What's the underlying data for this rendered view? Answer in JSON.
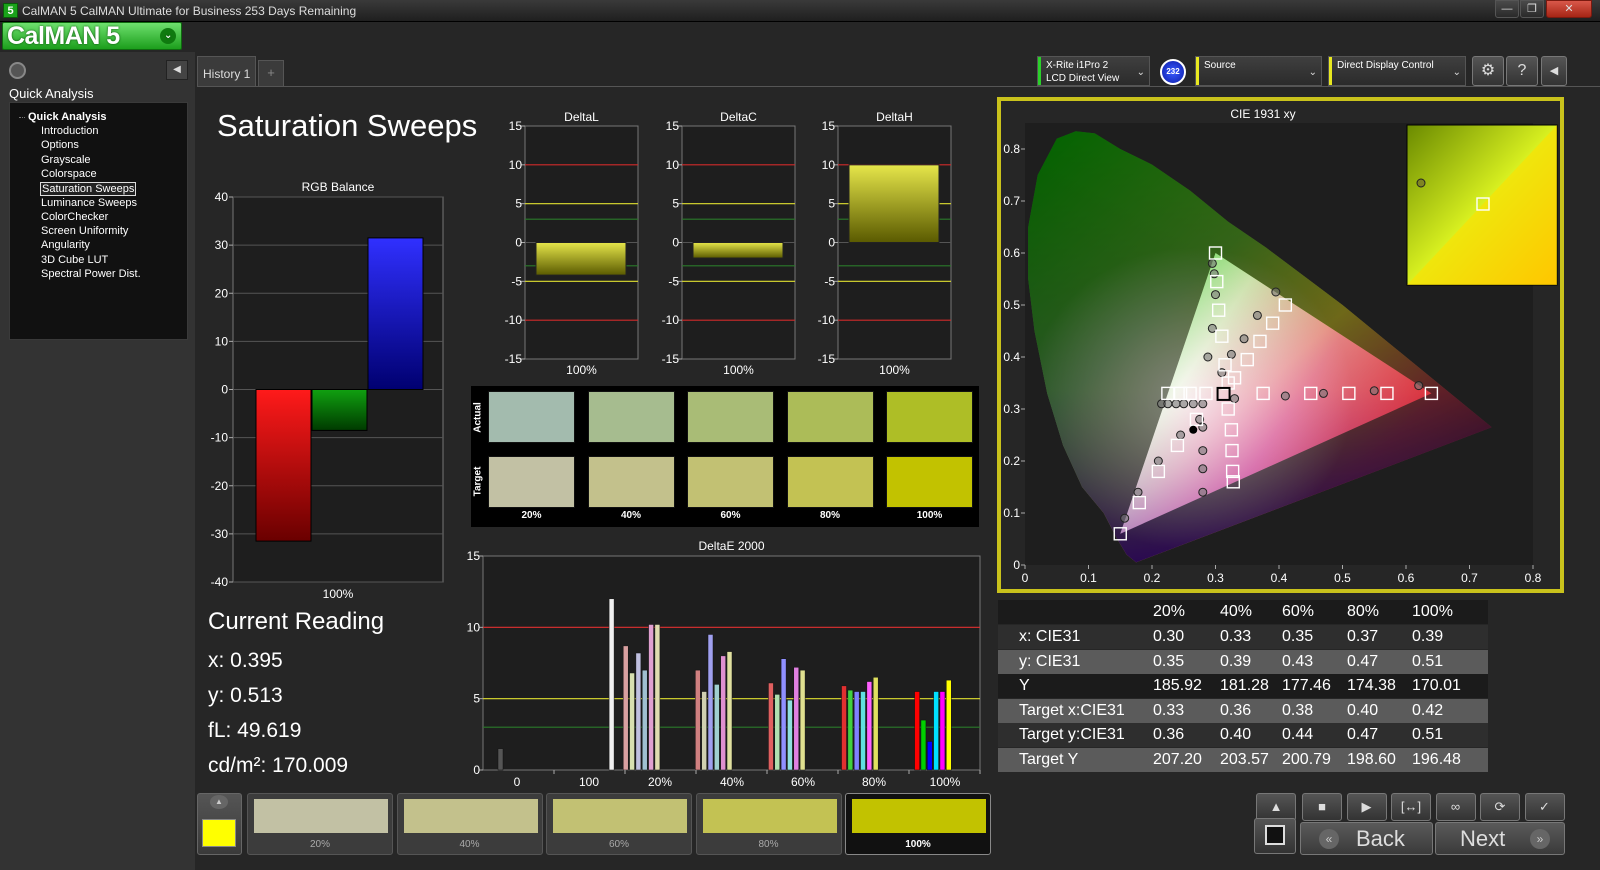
{
  "window": {
    "title": "CalMAN 5 CalMAN Ultimate for Business 253 Days Remaining",
    "icon_label": "5",
    "min": "—",
    "max": "❐",
    "close": "✕"
  },
  "logo": {
    "text": "CalMAN 5",
    "caret": "⌄"
  },
  "left_panel": {
    "heading": "Quick Analysis",
    "collapse": "◀",
    "root": "Quick Analysis",
    "items": [
      "Introduction",
      "Options",
      "Grayscale",
      "Colorspace",
      "Saturation Sweeps",
      "Luminance Sweeps",
      "ColorChecker",
      "Screen Uniformity",
      "Angularity",
      "3D Cube LUT",
      "Spectral Power Dist."
    ],
    "selected_index": 4
  },
  "tabs": {
    "history": "History 1",
    "add": "+"
  },
  "devices": {
    "meter_line1": "X-Rite i1Pro 2",
    "meter_line2": "LCD Direct View",
    "badge": "232",
    "source": "Source",
    "display_control": "Direct Display Control",
    "gear": "⚙",
    "help": "?",
    "panel_toggle": "◀",
    "caret": "⌄"
  },
  "page_title": "Saturation Sweeps",
  "rgb_balance": {
    "title": "RGB Balance",
    "category": "100%",
    "yticks": [
      "40",
      "30",
      "20",
      "10",
      "0",
      "-10",
      "-20",
      "-30",
      "-40"
    ],
    "ylim": [
      -40,
      40
    ],
    "bars": [
      {
        "name": "R",
        "value": -31.5,
        "color_top": "#ff1a1a",
        "color_bottom": "#6a0000"
      },
      {
        "name": "G",
        "value": -8.5,
        "color_top": "#10a010",
        "color_bottom": "#003a00"
      },
      {
        "name": "B",
        "value": 31.5,
        "color_top": "#3030ff",
        "color_bottom": "#000070"
      }
    ]
  },
  "delta_charts": [
    {
      "title": "DeltaL",
      "category": "100%",
      "value": -4.2
    },
    {
      "title": "DeltaC",
      "category": "100%",
      "value": -2.0
    },
    {
      "title": "DeltaH",
      "category": "100%",
      "value": 10.0
    }
  ],
  "delta_axis": {
    "yticks": [
      "15",
      "10",
      "5",
      "0",
      "-5",
      "-10",
      "-15"
    ],
    "ylim": [
      -15,
      15
    ]
  },
  "swatches": {
    "actual_label": "Actual",
    "target_label": "Target",
    "labels": [
      "20%",
      "40%",
      "60%",
      "80%",
      "100%"
    ],
    "actual_colors": [
      "#a3bbae",
      "#a6bc8f",
      "#a9bc76",
      "#acbc58",
      "#aebe26"
    ],
    "target_colors": [
      "#c2c1a4",
      "#c3c18c",
      "#c2c173",
      "#c3c253",
      "#c2c200"
    ]
  },
  "chart_data": {
    "type": "bar",
    "title": "DeltaE 2000",
    "ylim": [
      0,
      15
    ],
    "yticks": [
      "15",
      "10",
      "5",
      "0"
    ],
    "categories": [
      "0",
      "100",
      "20%",
      "40%",
      "60%",
      "80%",
      "100%"
    ],
    "bars": [
      {
        "x": 0,
        "value": 1.5,
        "color": "#555555"
      },
      {
        "x": 2.28,
        "value": 12.0,
        "color": "#f0f0f0"
      },
      {
        "x": 2.57,
        "value": 8.7,
        "color": "#d9a0a0"
      },
      {
        "x": 2.7,
        "value": 6.8,
        "color": "#d8e0b0"
      },
      {
        "x": 2.83,
        "value": 8.2,
        "color": "#c0c0e0"
      },
      {
        "x": 2.96,
        "value": 7.0,
        "color": "#a0c0d0"
      },
      {
        "x": 3.09,
        "value": 10.2,
        "color": "#e0a0d0"
      },
      {
        "x": 3.22,
        "value": 10.2,
        "color": "#e0dcb0"
      },
      {
        "x": 4.05,
        "value": 7.0,
        "color": "#d08080"
      },
      {
        "x": 4.18,
        "value": 5.5,
        "color": "#d0d0b0"
      },
      {
        "x": 4.31,
        "value": 9.5,
        "color": "#a0a0ef"
      },
      {
        "x": 4.44,
        "value": 6.0,
        "color": "#a0d0d0"
      },
      {
        "x": 4.57,
        "value": 8.0,
        "color": "#e090d0"
      },
      {
        "x": 4.7,
        "value": 8.3,
        "color": "#e0e0a0"
      },
      {
        "x": 5.55,
        "value": 6.1,
        "color": "#e06060"
      },
      {
        "x": 5.68,
        "value": 5.3,
        "color": "#b0e0b0"
      },
      {
        "x": 5.81,
        "value": 7.8,
        "color": "#9090ff"
      },
      {
        "x": 5.94,
        "value": 4.9,
        "color": "#90e0e0"
      },
      {
        "x": 6.07,
        "value": 7.2,
        "color": "#e080e0"
      },
      {
        "x": 6.2,
        "value": 7.0,
        "color": "#e0e090"
      },
      {
        "x": 7.05,
        "value": 5.9,
        "color": "#e03030"
      },
      {
        "x": 7.18,
        "value": 5.6,
        "color": "#40d040"
      },
      {
        "x": 7.31,
        "value": 5.5,
        "color": "#8080ff"
      },
      {
        "x": 7.44,
        "value": 5.5,
        "color": "#60e0e0"
      },
      {
        "x": 7.57,
        "value": 6.2,
        "color": "#ff60ff"
      },
      {
        "x": 7.7,
        "value": 6.5,
        "color": "#e0e060"
      },
      {
        "x": 8.55,
        "value": 5.5,
        "color": "#ff0000"
      },
      {
        "x": 8.68,
        "value": 3.5,
        "color": "#00d000"
      },
      {
        "x": 8.81,
        "value": 2.0,
        "color": "#0000ff"
      },
      {
        "x": 8.94,
        "value": 5.5,
        "color": "#00e0ff"
      },
      {
        "x": 9.07,
        "value": 5.5,
        "color": "#ff00ff"
      },
      {
        "x": 9.2,
        "value": 6.3,
        "color": "#ffff00"
      }
    ],
    "threshold_lines": [
      {
        "value": 10,
        "color": "#e03030"
      },
      {
        "value": 5,
        "color": "#e0e030"
      },
      {
        "value": 3,
        "color": "#2a7a2a"
      }
    ]
  },
  "cie": {
    "title": "CIE 1931 xy",
    "xticks": [
      "0",
      "0.1",
      "0.2",
      "0.3",
      "0.4",
      "0.5",
      "0.6",
      "0.7",
      "0.8"
    ],
    "yticks": [
      "0.8",
      "0.7",
      "0.6",
      "0.5",
      "0.4",
      "0.3",
      "0.2",
      "0.1",
      "0"
    ],
    "targets": [
      [
        0.64,
        0.33
      ],
      [
        0.57,
        0.33
      ],
      [
        0.51,
        0.33
      ],
      [
        0.45,
        0.33
      ],
      [
        0.375,
        0.33
      ],
      [
        0.3,
        0.6
      ],
      [
        0.302,
        0.545
      ],
      [
        0.305,
        0.49
      ],
      [
        0.31,
        0.44
      ],
      [
        0.315,
        0.385
      ],
      [
        0.15,
        0.06
      ],
      [
        0.18,
        0.12
      ],
      [
        0.21,
        0.18
      ],
      [
        0.24,
        0.23
      ],
      [
        0.27,
        0.28
      ],
      [
        0.32,
        0.35
      ],
      [
        0.41,
        0.5
      ],
      [
        0.39,
        0.465
      ],
      [
        0.37,
        0.43
      ],
      [
        0.35,
        0.395
      ],
      [
        0.33,
        0.36
      ],
      [
        0.225,
        0.33
      ],
      [
        0.245,
        0.33
      ],
      [
        0.26,
        0.33
      ],
      [
        0.285,
        0.33
      ],
      [
        0.32,
        0.3
      ],
      [
        0.325,
        0.26
      ],
      [
        0.326,
        0.22
      ],
      [
        0.327,
        0.18
      ],
      [
        0.328,
        0.16
      ],
      [
        0.3127,
        0.329
      ]
    ],
    "measured": [
      [
        0.62,
        0.345
      ],
      [
        0.55,
        0.335
      ],
      [
        0.47,
        0.33
      ],
      [
        0.41,
        0.325
      ],
      [
        0.33,
        0.32
      ],
      [
        0.295,
        0.58
      ],
      [
        0.298,
        0.56
      ],
      [
        0.3,
        0.52
      ],
      [
        0.295,
        0.455
      ],
      [
        0.288,
        0.4
      ],
      [
        0.157,
        0.09
      ],
      [
        0.178,
        0.14
      ],
      [
        0.21,
        0.2
      ],
      [
        0.245,
        0.25
      ],
      [
        0.275,
        0.28
      ],
      [
        0.395,
        0.525
      ],
      [
        0.366,
        0.48
      ],
      [
        0.345,
        0.435
      ],
      [
        0.325,
        0.405
      ],
      [
        0.31,
        0.37
      ],
      [
        0.215,
        0.31
      ],
      [
        0.225,
        0.31
      ],
      [
        0.238,
        0.31
      ],
      [
        0.25,
        0.31
      ],
      [
        0.265,
        0.31
      ],
      [
        0.28,
        0.31
      ],
      [
        0.28,
        0.265
      ],
      [
        0.28,
        0.22
      ],
      [
        0.28,
        0.185
      ],
      [
        0.28,
        0.14
      ]
    ],
    "whitepoint": [
      0.265,
      0.26
    ]
  },
  "inset_chart": {
    "measured": [
      0.395,
      0.513
    ],
    "target": [
      0.42,
      0.51
    ]
  },
  "current_reading": {
    "heading": "Current Reading",
    "x": "x: 0.395",
    "y": "y: 0.513",
    "fl": "fL: 49.619",
    "cdm2": "cd/m²: 170.009"
  },
  "table": {
    "headers": [
      "20%",
      "40%",
      "60%",
      "80%",
      "100%"
    ],
    "rows": [
      {
        "label": "x: CIE31",
        "values": [
          "0.30",
          "0.33",
          "0.35",
          "0.37",
          "0.39"
        ]
      },
      {
        "label": "y: CIE31",
        "values": [
          "0.35",
          "0.39",
          "0.43",
          "0.47",
          "0.51"
        ]
      },
      {
        "label": "Y",
        "values": [
          "185.92",
          "181.28",
          "177.46",
          "174.38",
          "170.01"
        ]
      },
      {
        "label": "Target x:CIE31",
        "values": [
          "0.33",
          "0.36",
          "0.38",
          "0.40",
          "0.42"
        ]
      },
      {
        "label": "Target y:CIE31",
        "values": [
          "0.36",
          "0.40",
          "0.44",
          "0.47",
          "0.51"
        ]
      },
      {
        "label": "Target Y",
        "values": [
          "207.20",
          "203.57",
          "200.79",
          "198.60",
          "196.48"
        ]
      }
    ]
  },
  "bottom": {
    "patches": [
      {
        "label": "20%",
        "color": "#c2c1a4"
      },
      {
        "label": "40%",
        "color": "#c3c18c"
      },
      {
        "label": "60%",
        "color": "#c2c173"
      },
      {
        "label": "80%",
        "color": "#c3c253"
      },
      {
        "label": "100%",
        "color": "#c2c200"
      }
    ],
    "current_color": "#ffff00",
    "up_arrow": "▲",
    "controls": [
      "■",
      "▶",
      "[↔]",
      "∞",
      "⟳",
      "✓"
    ],
    "back": "Back",
    "next": "Next",
    "back_arrow": "«",
    "next_arrow": "»"
  }
}
